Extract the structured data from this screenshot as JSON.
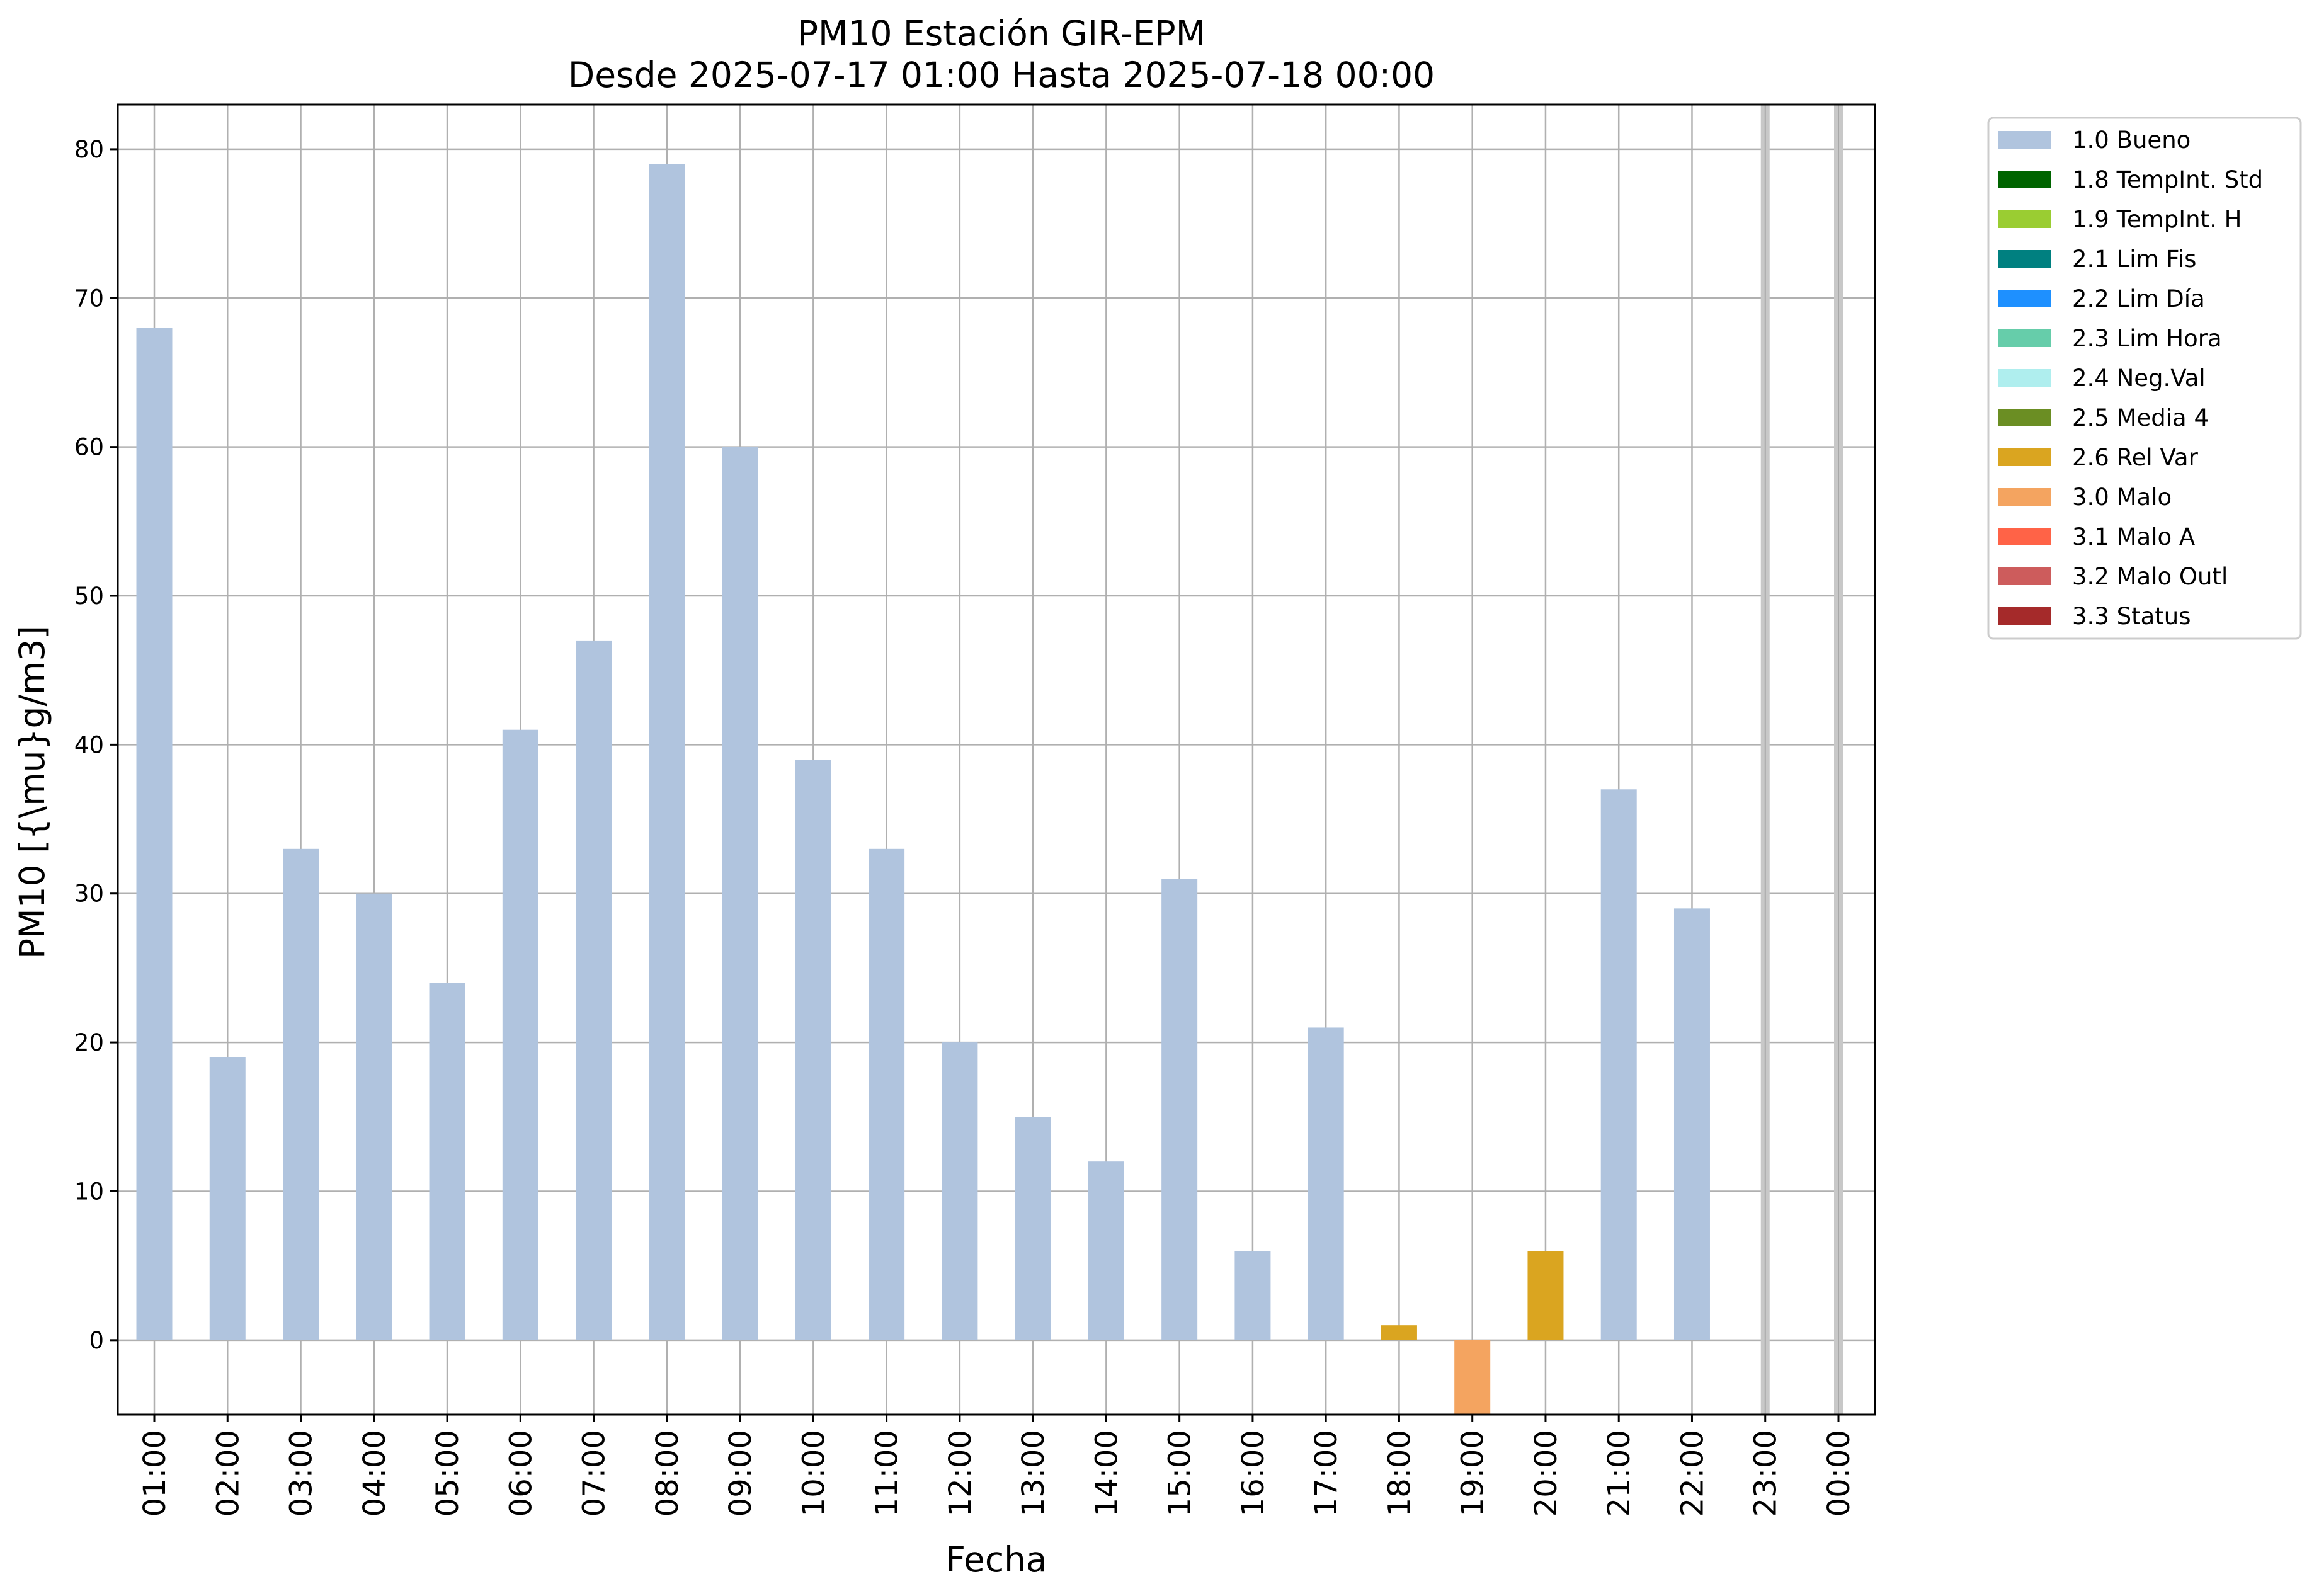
{
  "chart_data": {
    "type": "bar",
    "title": "PM10 Estación GIR-EPM",
    "subtitle": "Desde 2025-07-17 01:00 Hasta 2025-07-18 00:00",
    "xlabel": "Fecha",
    "ylabel": "PM10 [{\\mu}g/m3]",
    "ylim": [
      -5,
      83
    ],
    "yticks": [
      0,
      10,
      20,
      30,
      40,
      50,
      60,
      70,
      80
    ],
    "grid": true,
    "legend_position": "outside-right",
    "categories": [
      "01:00",
      "02:00",
      "03:00",
      "04:00",
      "05:00",
      "06:00",
      "07:00",
      "08:00",
      "09:00",
      "10:00",
      "11:00",
      "12:00",
      "13:00",
      "14:00",
      "15:00",
      "16:00",
      "17:00",
      "18:00",
      "19:00",
      "20:00",
      "21:00",
      "22:00",
      "23:00",
      "00:00"
    ],
    "bars": [
      {
        "value": 68,
        "flag": "1.0 Bueno"
      },
      {
        "value": 19,
        "flag": "1.0 Bueno"
      },
      {
        "value": 33,
        "flag": "1.0 Bueno"
      },
      {
        "value": 30,
        "flag": "1.0 Bueno"
      },
      {
        "value": 24,
        "flag": "1.0 Bueno"
      },
      {
        "value": 41,
        "flag": "1.0 Bueno"
      },
      {
        "value": 47,
        "flag": "1.0 Bueno"
      },
      {
        "value": 79,
        "flag": "1.0 Bueno"
      },
      {
        "value": 60,
        "flag": "1.0 Bueno"
      },
      {
        "value": 39,
        "flag": "1.0 Bueno"
      },
      {
        "value": 33,
        "flag": "1.0 Bueno"
      },
      {
        "value": 20,
        "flag": "1.0 Bueno"
      },
      {
        "value": 15,
        "flag": "1.0 Bueno"
      },
      {
        "value": 12,
        "flag": "1.0 Bueno"
      },
      {
        "value": 31,
        "flag": "1.0 Bueno"
      },
      {
        "value": 6,
        "flag": "1.0 Bueno"
      },
      {
        "value": 21,
        "flag": "1.0 Bueno"
      },
      {
        "value": 1,
        "flag": "2.6 Rel Var"
      },
      {
        "value": -5,
        "flag": "3.0 Malo"
      },
      {
        "value": 6,
        "flag": "2.6 Rel Var"
      },
      {
        "value": 37,
        "flag": "1.0 Bueno"
      },
      {
        "value": 29,
        "flag": "1.0 Bueno"
      },
      {
        "value": null,
        "flag": null
      },
      {
        "value": null,
        "flag": null
      }
    ],
    "missing_markers": [
      "23:00",
      "00:00"
    ],
    "legend": [
      {
        "label": "1.0 Bueno",
        "color": "#b0c4de"
      },
      {
        "label": "1.8 TempInt. Std",
        "color": "#006400"
      },
      {
        "label": "1.9 TempInt. H",
        "color": "#9acd32"
      },
      {
        "label": "2.1 Lim Fis",
        "color": "#008080"
      },
      {
        "label": "2.2 Lim Día",
        "color": "#1e90ff"
      },
      {
        "label": "2.3 Lim Hora",
        "color": "#66cdaa"
      },
      {
        "label": "2.4 Neg.Val",
        "color": "#afeeee"
      },
      {
        "label": "2.5 Media 4",
        "color": "#6b8e23"
      },
      {
        "label": "2.6 Rel Var",
        "color": "#daa520"
      },
      {
        "label": "3.0 Malo",
        "color": "#f4a460"
      },
      {
        "label": "3.1 Malo A",
        "color": "#ff6347"
      },
      {
        "label": "3.2 Malo Outl",
        "color": "#cd5c5c"
      },
      {
        "label": "3.3 Status",
        "color": "#a52a2a"
      }
    ]
  }
}
